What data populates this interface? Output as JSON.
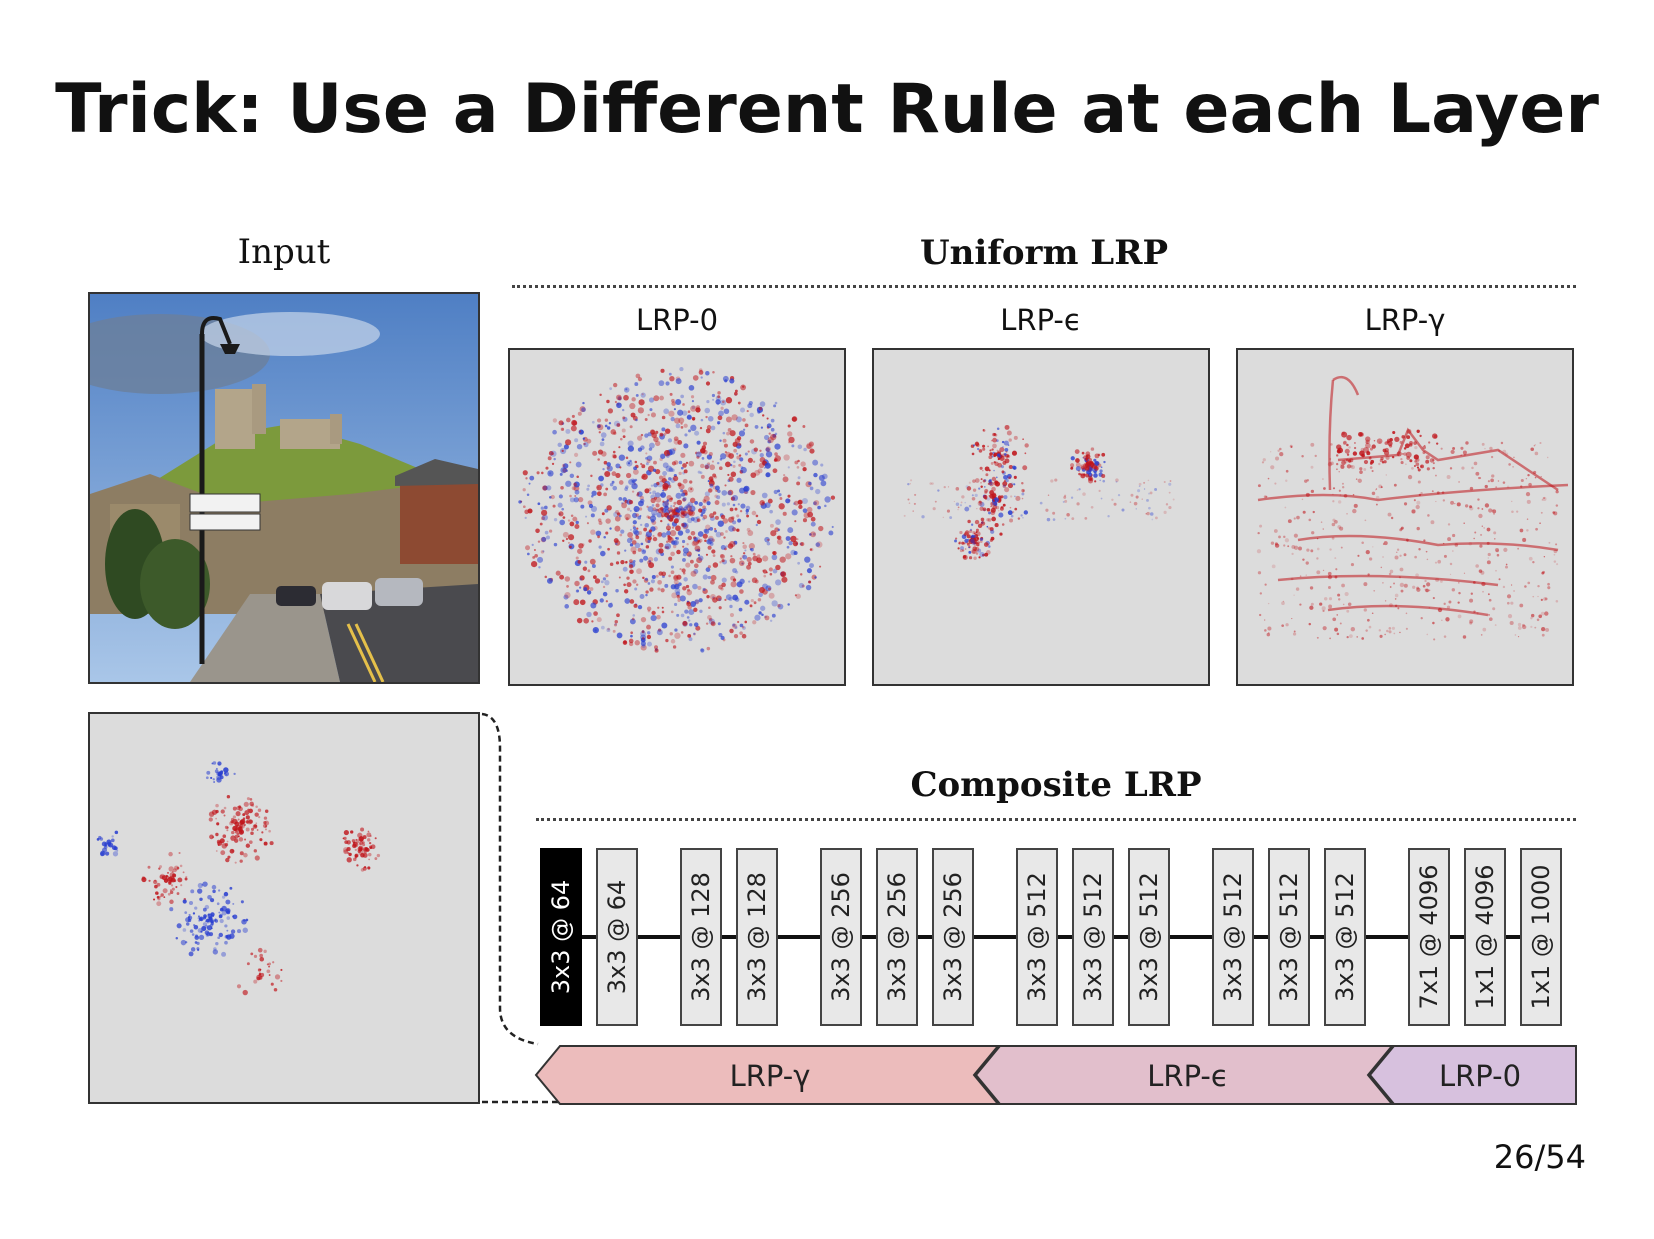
{
  "title": "Trick: Use a Different Rule at each Layer",
  "input_label": "Input",
  "uniform": {
    "title": "Uniform LRP",
    "panels": [
      "LRP-0",
      "LRP-ϵ",
      "LRP-γ"
    ]
  },
  "composite": {
    "title": "Composite LRP",
    "layers": [
      "3x3 @ 64",
      "3x3 @ 64",
      "3x3 @ 128",
      "3x3 @ 128",
      "3x3 @ 256",
      "3x3 @ 256",
      "3x3 @ 256",
      "3x3 @ 512",
      "3x3 @ 512",
      "3x3 @ 512",
      "3x3 @ 512",
      "3x3 @ 512",
      "3x3 @ 512",
      "7x1 @ 4096",
      "1x1 @ 4096",
      "1x1 @ 1000"
    ],
    "rules": [
      {
        "label": "LRP-γ",
        "color": "#ecbcbc"
      },
      {
        "label": "LRP-ϵ",
        "color": "#e2bfcc"
      },
      {
        "label": "LRP-0",
        "color": "#d7c1de"
      }
    ]
  },
  "colors": {
    "positive": "#c0141a",
    "negative": "#2a3fd0",
    "background": "#dcdcdc"
  },
  "page_number": "26/54"
}
